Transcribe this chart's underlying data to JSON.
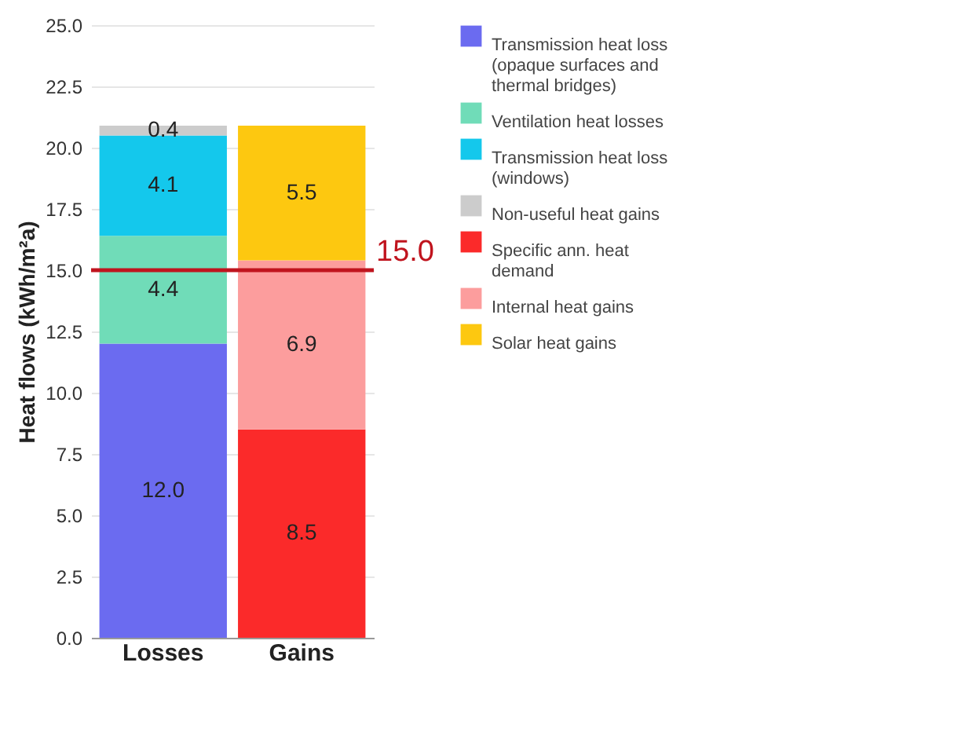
{
  "chart_data": {
    "type": "bar",
    "stacked": true,
    "ylabel": "Heat flows (kWh/m²a)",
    "categories": [
      "Losses",
      "Gains"
    ],
    "series": [
      {
        "name": "Transmission heat loss (opaque surfaces and thermal bridges)",
        "color": "#6b6bf0",
        "values": [
          12.0,
          null
        ],
        "value_labels": [
          "12.0",
          null
        ]
      },
      {
        "name": "Ventilation heat losses",
        "color": "#70dcb8",
        "values": [
          4.4,
          null
        ],
        "value_labels": [
          "4.4",
          null
        ]
      },
      {
        "name": "Transmission heat loss (windows)",
        "color": "#14c8ec",
        "values": [
          4.1,
          null
        ],
        "value_labels": [
          "4.1",
          null
        ]
      },
      {
        "name": "Non-useful heat gains",
        "color": "#cccccc",
        "values": [
          0.4,
          null
        ],
        "value_labels": [
          "0.4",
          null
        ]
      },
      {
        "name": "Specific ann. heat demand",
        "color": "#fb2a2a",
        "values": [
          null,
          8.5
        ],
        "value_labels": [
          null,
          "8.5"
        ]
      },
      {
        "name": "Internal heat gains",
        "color": "#fc9d9d",
        "values": [
          null,
          6.9
        ],
        "value_labels": [
          null,
          "6.9"
        ]
      },
      {
        "name": "Solar heat gains",
        "color": "#fdc810",
        "values": [
          null,
          5.5
        ],
        "value_labels": [
          null,
          "5.5"
        ]
      }
    ],
    "ylim": [
      0,
      25
    ],
    "yticks": [
      {
        "value": 0,
        "label": "0.0"
      },
      {
        "value": 2.5,
        "label": "2.5"
      },
      {
        "value": 5,
        "label": "5.0"
      },
      {
        "value": 7.5,
        "label": "7.5"
      },
      {
        "value": 10,
        "label": "10.0"
      },
      {
        "value": 12.5,
        "label": "12.5"
      },
      {
        "value": 15,
        "label": "15.0"
      },
      {
        "value": 17.5,
        "label": "17.5"
      },
      {
        "value": 20,
        "label": "20.0"
      },
      {
        "value": 22.5,
        "label": "22.5"
      },
      {
        "value": 25,
        "label": "25.0"
      }
    ],
    "ref_lines": [
      {
        "axis": "y",
        "value": 15,
        "label": "15.0",
        "color": "#c0141e"
      }
    ],
    "grid": "y",
    "legend": "right"
  }
}
